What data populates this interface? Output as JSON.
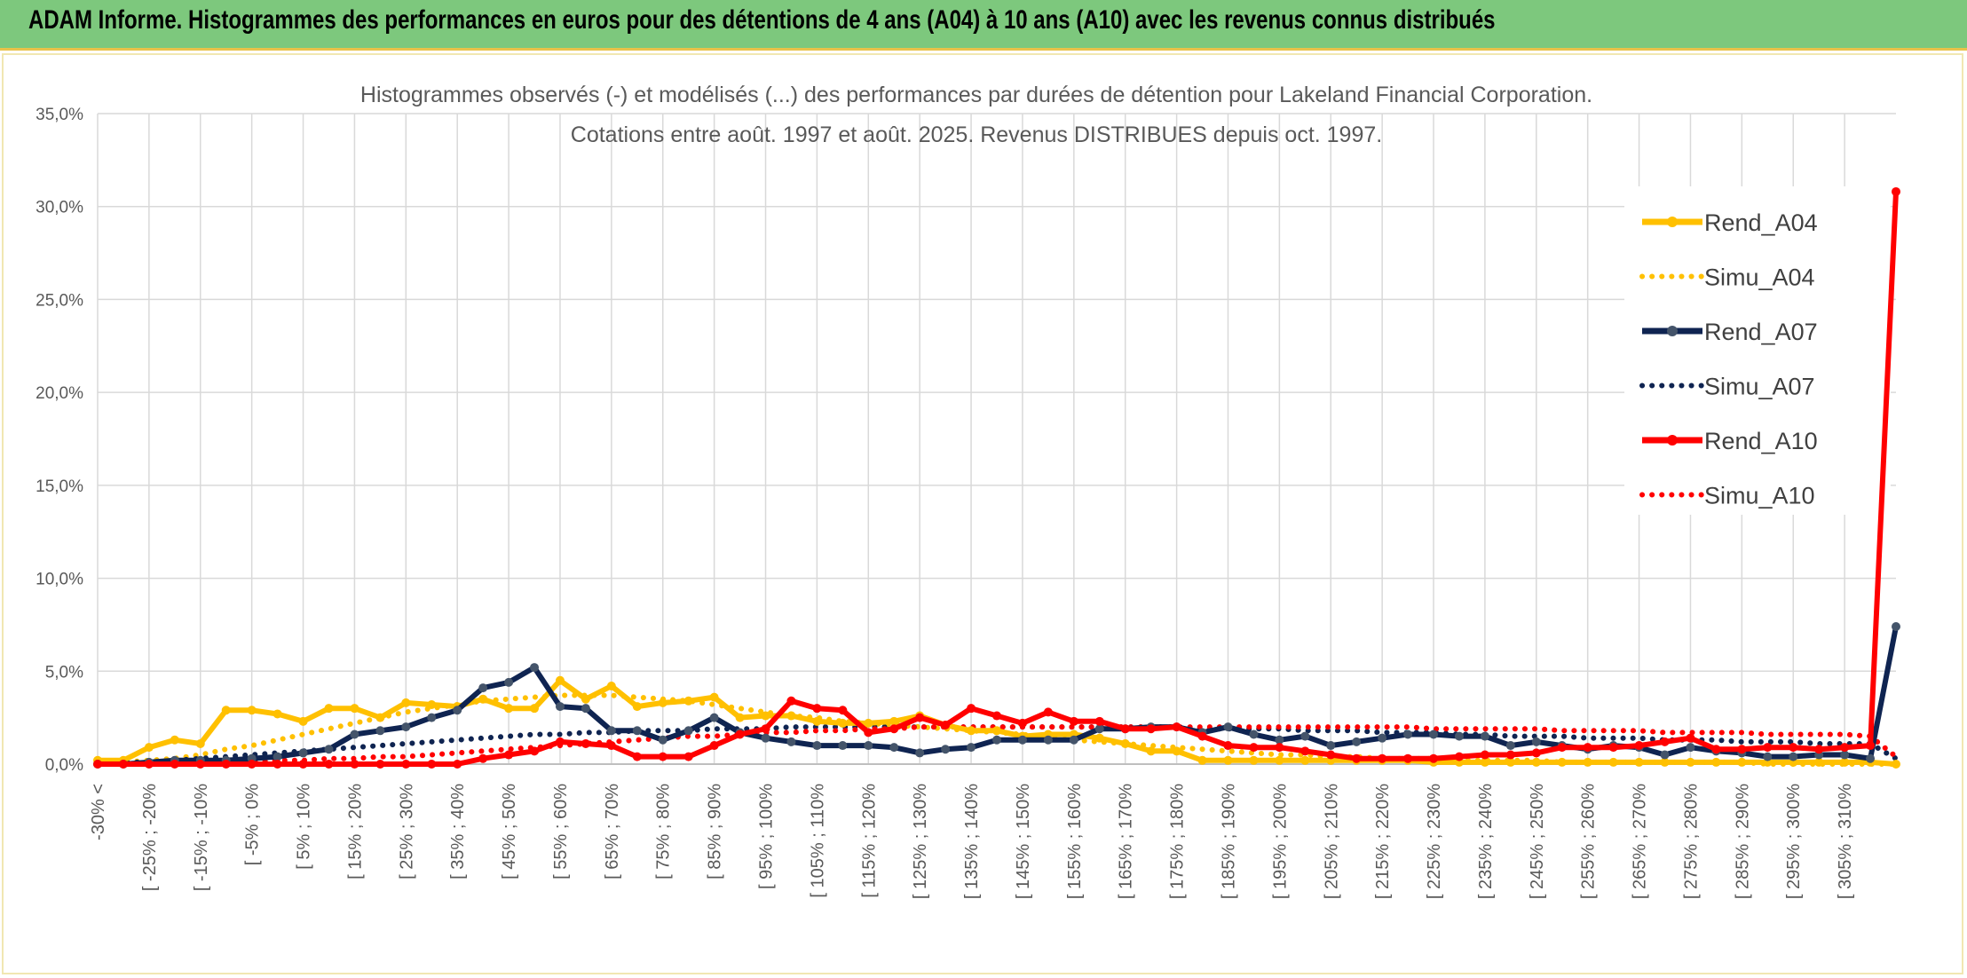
{
  "header": {
    "title": "ADAM Informe. Histogrammes des performances en euros pour des détentions de 4 ans (A04) à 10 ans (A10) avec les revenus connus distribués"
  },
  "chart_data": {
    "type": "line",
    "title_lines": [
      "Histogrammes observés (-) et modélisés (...) des performances par durées de détention pour Lakeland Financial Corporation.",
      "Cotations entre août. 1997 et août. 2025. Revenus DISTRIBUES depuis oct. 1997."
    ],
    "xlabel": "",
    "ylabel": "",
    "ylim": [
      0,
      35
    ],
    "y_ticks": [
      "0,0%",
      "5,0%",
      "10,0%",
      "15,0%",
      "20,0%",
      "25,0%",
      "30,0%",
      "35,0%"
    ],
    "x_tick_labels": [
      "-30% <",
      "[ -25% ; -20%",
      "[ -15% ; -10%",
      "[ -5% ; 0%",
      "[ 5% ; 10%",
      "[ 15% ; 20%",
      "[ 25% ; 30%",
      "[ 35% ; 40%",
      "[ 45% ; 50%",
      "[ 55% ; 60%",
      "[ 65% ; 70%",
      "[ 75% ; 80%",
      "[ 85% ; 90%",
      "[ 95% ; 100%",
      "[ 105% ; 110%",
      "[ 115% ; 120%",
      "[ 125% ; 130%",
      "[ 135% ; 140%",
      "[ 145% ; 150%",
      "[ 155% ; 160%",
      "[ 165% ; 170%",
      "[ 175% ; 180%",
      "[ 185% ; 190%",
      "[ 195% ; 200%",
      "[ 205% ; 210%",
      "[ 215% ; 220%",
      "[ 225% ; 230%",
      "[ 235% ; 240%",
      "[ 245% ; 250%",
      "[ 255% ; 260%",
      "[ 265% ; 270%",
      "[ 275% ; 280%",
      "[ 285% ; 290%",
      "[ 295% ; 300%",
      "[ 305% ; 310%"
    ],
    "grid": true,
    "legend_position": "right",
    "series": [
      {
        "name": "Rend_A04",
        "style": "solid",
        "color": "#ffc000",
        "values": [
          0.2,
          0.2,
          0.9,
          1.3,
          1.1,
          2.9,
          2.9,
          2.7,
          2.3,
          3.0,
          3.0,
          2.5,
          3.3,
          3.2,
          3.1,
          3.5,
          3.0,
          3.0,
          4.5,
          3.5,
          4.2,
          3.1,
          3.3,
          3.4,
          3.6,
          2.5,
          2.6,
          2.6,
          2.3,
          2.2,
          2.2,
          2.3,
          2.6,
          2.1,
          1.8,
          1.8,
          1.5,
          1.6,
          1.6,
          1.4,
          1.1,
          0.7,
          0.7,
          0.2,
          0.2,
          0.2,
          0.2,
          0.2,
          0.2,
          0.2,
          0.2,
          0.2,
          0.1,
          0.1,
          0.1,
          0.1,
          0.1,
          0.1,
          0.1,
          0.1,
          0.1,
          0.1,
          0.1,
          0.1,
          0.1,
          0.1,
          0.1,
          0.1,
          0.1,
          0.1,
          0.0
        ]
      },
      {
        "name": "Simu_A04",
        "style": "dotted",
        "color": "#ffc000",
        "values": [
          0.0,
          0.1,
          0.2,
          0.3,
          0.5,
          0.8,
          1.0,
          1.3,
          1.6,
          1.9,
          2.2,
          2.5,
          2.8,
          3.0,
          3.2,
          3.4,
          3.5,
          3.6,
          3.7,
          3.7,
          3.7,
          3.6,
          3.5,
          3.4,
          3.2,
          3.0,
          2.8,
          2.6,
          2.5,
          2.3,
          2.2,
          2.1,
          2.0,
          1.9,
          1.8,
          1.7,
          1.6,
          1.4,
          1.3,
          1.2,
          1.1,
          1.0,
          0.9,
          0.8,
          0.7,
          0.6,
          0.5,
          0.5,
          0.4,
          0.4,
          0.3,
          0.3,
          0.3,
          0.2,
          0.2,
          0.2,
          0.2,
          0.1,
          0.1,
          0.1,
          0.1,
          0.1,
          0.1,
          0.1,
          0.1,
          0.0,
          0.0,
          0.0,
          0.0,
          0.0,
          0.0
        ]
      },
      {
        "name": "Rend_A07",
        "style": "solid",
        "color": "#0f2451",
        "values": [
          0.0,
          0.0,
          0.1,
          0.2,
          0.2,
          0.2,
          0.3,
          0.4,
          0.6,
          0.8,
          1.6,
          1.8,
          2.0,
          2.5,
          2.9,
          4.1,
          4.4,
          5.2,
          3.1,
          3.0,
          1.8,
          1.8,
          1.3,
          1.8,
          2.5,
          1.7,
          1.4,
          1.2,
          1.0,
          1.0,
          1.0,
          0.9,
          0.6,
          0.8,
          0.9,
          1.3,
          1.3,
          1.3,
          1.3,
          1.9,
          1.9,
          2.0,
          2.0,
          1.7,
          2.0,
          1.6,
          1.3,
          1.5,
          1.0,
          1.2,
          1.4,
          1.6,
          1.6,
          1.5,
          1.5,
          1.0,
          1.2,
          1.0,
          0.8,
          1.0,
          0.9,
          0.5,
          0.9,
          0.7,
          0.6,
          0.4,
          0.4,
          0.5,
          0.5,
          0.3,
          7.4
        ]
      },
      {
        "name": "Simu_A07",
        "style": "dotted",
        "color": "#0f2451",
        "values": [
          0.0,
          0.1,
          0.1,
          0.2,
          0.3,
          0.4,
          0.5,
          0.6,
          0.7,
          0.8,
          0.9,
          1.0,
          1.1,
          1.2,
          1.3,
          1.4,
          1.5,
          1.6,
          1.6,
          1.7,
          1.7,
          1.8,
          1.8,
          1.8,
          1.9,
          1.9,
          1.9,
          2.0,
          2.0,
          2.0,
          2.0,
          2.0,
          2.0,
          2.0,
          2.0,
          2.0,
          2.0,
          2.0,
          2.0,
          2.0,
          2.0,
          2.0,
          2.0,
          1.9,
          1.9,
          1.9,
          1.9,
          1.8,
          1.8,
          1.8,
          1.7,
          1.7,
          1.7,
          1.6,
          1.6,
          1.5,
          1.5,
          1.5,
          1.4,
          1.4,
          1.4,
          1.3,
          1.3,
          1.3,
          1.2,
          1.2,
          1.2,
          1.1,
          1.1,
          1.1,
          0.3
        ]
      },
      {
        "name": "Rend_A10",
        "style": "solid",
        "color": "#ff0000",
        "values": [
          0.0,
          0.0,
          0.0,
          0.0,
          0.0,
          0.0,
          0.0,
          0.0,
          0.0,
          0.0,
          0.0,
          0.0,
          0.0,
          0.0,
          0.0,
          0.3,
          0.5,
          0.7,
          1.2,
          1.1,
          1.0,
          0.4,
          0.4,
          0.4,
          1.0,
          1.6,
          1.9,
          3.4,
          3.0,
          2.9,
          1.7,
          1.9,
          2.5,
          2.1,
          3.0,
          2.6,
          2.2,
          2.8,
          2.3,
          2.3,
          1.9,
          1.9,
          2.0,
          1.5,
          1.0,
          0.9,
          0.9,
          0.7,
          0.5,
          0.3,
          0.3,
          0.3,
          0.3,
          0.4,
          0.5,
          0.5,
          0.6,
          0.9,
          0.9,
          0.9,
          1.0,
          1.2,
          1.4,
          0.8,
          0.8,
          0.9,
          0.9,
          0.8,
          0.9,
          1.0,
          30.8
        ]
      },
      {
        "name": "Simu_A10",
        "style": "dotted",
        "color": "#ff0000",
        "values": [
          0.0,
          0.0,
          0.0,
          0.1,
          0.1,
          0.1,
          0.1,
          0.2,
          0.2,
          0.3,
          0.3,
          0.4,
          0.4,
          0.5,
          0.6,
          0.7,
          0.8,
          0.9,
          1.0,
          1.1,
          1.2,
          1.3,
          1.4,
          1.5,
          1.5,
          1.6,
          1.7,
          1.7,
          1.8,
          1.8,
          1.9,
          1.9,
          2.0,
          2.0,
          2.0,
          2.0,
          2.0,
          2.0,
          2.0,
          2.0,
          2.0,
          2.0,
          2.0,
          2.0,
          2.0,
          2.0,
          2.0,
          2.0,
          2.0,
          2.0,
          2.0,
          2.0,
          1.9,
          1.9,
          1.9,
          1.9,
          1.9,
          1.8,
          1.8,
          1.8,
          1.8,
          1.7,
          1.7,
          1.7,
          1.7,
          1.6,
          1.6,
          1.6,
          1.6,
          1.5,
          0.4
        ]
      }
    ]
  }
}
